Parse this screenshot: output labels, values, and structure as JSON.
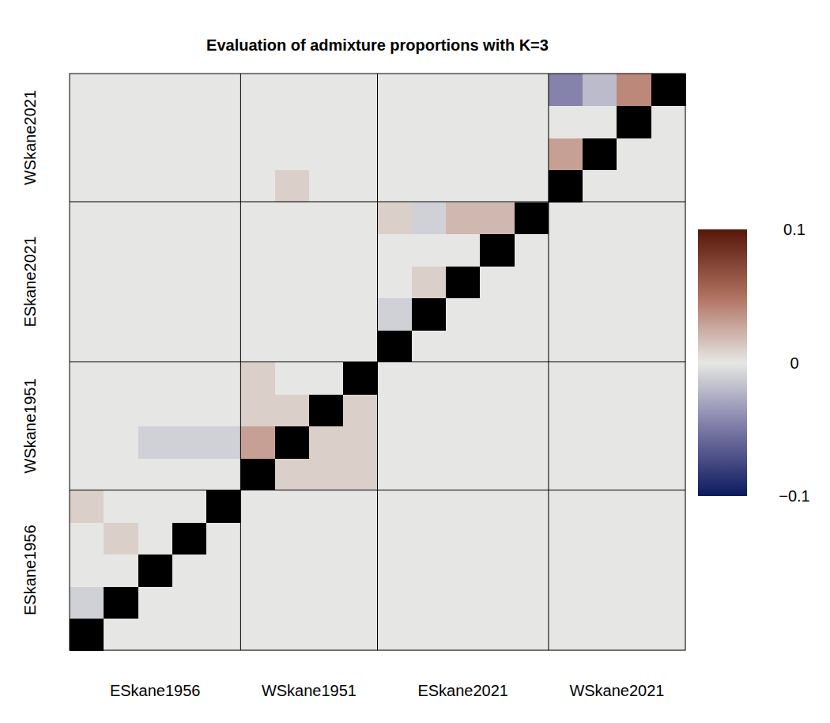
{
  "chart_data": {
    "type": "heatmap",
    "title": "Evaluation of admixture proportions with K=3",
    "groups": [
      "ESkane1956",
      "WSkane1951",
      "ESkane2021",
      "WSkane2021"
    ],
    "group_sizes": [
      5,
      4,
      5,
      4
    ],
    "cells": [
      [
        null,
        0,
        0,
        0,
        0,
        0,
        0,
        0,
        0,
        0,
        0,
        0,
        0,
        0,
        0,
        0,
        0,
        0
      ],
      [
        -0.01,
        null,
        0,
        0,
        0,
        0,
        0,
        0,
        0,
        0,
        0,
        0,
        0,
        0,
        0,
        0,
        0,
        0
      ],
      [
        0,
        0,
        null,
        0,
        0,
        0,
        0,
        0,
        0,
        0,
        0,
        0,
        0,
        0,
        0,
        0,
        0,
        0
      ],
      [
        0,
        0.01,
        0,
        null,
        0,
        0,
        0,
        0,
        0,
        0,
        0,
        0,
        0,
        0,
        0,
        0,
        0,
        0
      ],
      [
        0.01,
        0,
        0,
        0,
        null,
        0,
        0,
        0,
        0,
        0,
        0,
        0,
        0,
        0,
        0,
        0,
        0,
        0
      ],
      [
        0,
        0,
        0,
        0,
        0,
        null,
        0.01,
        0.01,
        0.01,
        0,
        0,
        0,
        0,
        0,
        0,
        0,
        0,
        0
      ],
      [
        0,
        0,
        -0.01,
        -0.01,
        -0.01,
        0.03,
        null,
        0.01,
        0.01,
        0,
        0,
        0,
        0,
        0,
        0,
        0,
        0,
        0
      ],
      [
        0,
        0,
        0,
        0,
        0,
        0.01,
        0.01,
        null,
        0.01,
        0,
        0,
        0,
        0,
        0,
        0,
        0,
        0,
        0
      ],
      [
        0,
        0,
        0,
        0,
        0,
        0.01,
        0,
        0,
        null,
        0,
        0,
        0,
        0,
        0,
        0,
        0,
        0,
        0
      ],
      [
        0,
        0,
        0,
        0,
        0,
        0,
        0,
        0,
        0,
        null,
        0,
        0,
        0,
        0,
        0,
        0,
        0,
        0
      ],
      [
        0,
        0,
        0,
        0,
        0,
        0,
        0,
        0,
        0,
        -0.01,
        null,
        0,
        0,
        0,
        0,
        0,
        0,
        0
      ],
      [
        0,
        0,
        0,
        0,
        0,
        0,
        0,
        0,
        0,
        0,
        0.01,
        null,
        0,
        0,
        0,
        0,
        0,
        0
      ],
      [
        0,
        0,
        0,
        0,
        0,
        0,
        0,
        0,
        0,
        0,
        0,
        0,
        null,
        0,
        0,
        0,
        0,
        0
      ],
      [
        0,
        0,
        0,
        0,
        0,
        0,
        0,
        0,
        0,
        0.01,
        -0.01,
        0.02,
        0.02,
        null,
        0,
        0,
        0,
        0
      ],
      [
        0,
        0,
        0,
        0,
        0,
        0,
        0.01,
        0,
        0,
        0,
        0,
        0,
        0,
        0,
        null,
        0,
        0,
        0
      ],
      [
        0,
        0,
        0,
        0,
        0,
        0,
        0,
        0,
        0,
        0,
        0,
        0,
        0,
        0,
        0.03,
        null,
        0,
        0
      ],
      [
        0,
        0,
        0,
        0,
        0,
        0,
        0,
        0,
        0,
        0,
        0,
        0,
        0,
        0,
        0,
        0,
        null,
        0
      ],
      [
        0,
        0,
        0,
        0,
        0,
        0,
        0,
        0,
        0,
        0,
        0,
        0,
        0,
        0,
        -0.045,
        -0.02,
        0.04,
        null
      ]
    ],
    "color_range": [
      -0.1,
      0.1
    ],
    "color_ticks": [
      0.1,
      0,
      {
        "value": -0.1,
        "label": "−0.1"
      }
    ]
  }
}
